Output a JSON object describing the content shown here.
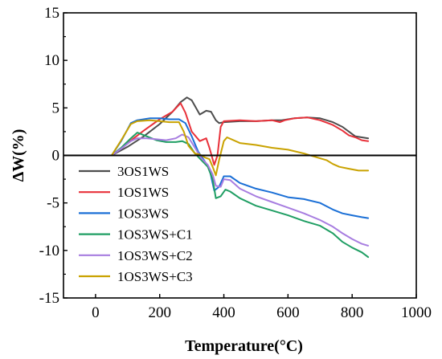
{
  "chart_data": {
    "type": "line",
    "title": "",
    "xlabel": "Temperature(°C)",
    "ylabel": "ΔW(%)",
    "xlim": [
      -100,
      1000
    ],
    "ylim": [
      -15,
      15
    ],
    "xticks": [
      0,
      200,
      400,
      600,
      800,
      1000
    ],
    "yticks": [
      15,
      10,
      5,
      0,
      -5,
      -10,
      -15
    ],
    "zero_line": true,
    "grid": false,
    "legend_position": "lower-left",
    "series": [
      {
        "name": "3OS1WS",
        "color": "#4d4d4d",
        "points": [
          [
            50,
            0
          ],
          [
            100,
            0.9
          ],
          [
            150,
            2.0
          ],
          [
            200,
            3.3
          ],
          [
            240,
            4.6
          ],
          [
            265,
            5.6
          ],
          [
            285,
            6.1
          ],
          [
            300,
            5.8
          ],
          [
            325,
            4.3
          ],
          [
            345,
            4.7
          ],
          [
            360,
            4.6
          ],
          [
            375,
            3.7
          ],
          [
            385,
            3.4
          ],
          [
            400,
            3.5
          ],
          [
            450,
            3.6
          ],
          [
            500,
            3.6
          ],
          [
            550,
            3.7
          ],
          [
            580,
            3.7
          ],
          [
            620,
            3.9
          ],
          [
            660,
            4.0
          ],
          [
            700,
            3.9
          ],
          [
            740,
            3.5
          ],
          [
            770,
            3.0
          ],
          [
            790,
            2.5
          ],
          [
            810,
            2.0
          ],
          [
            830,
            1.9
          ],
          [
            850,
            1.8
          ]
        ]
      },
      {
        "name": "1OS1WS",
        "color": "#e8313a",
        "points": [
          [
            50,
            0
          ],
          [
            100,
            1.3
          ],
          [
            150,
            2.6
          ],
          [
            200,
            3.8
          ],
          [
            240,
            4.6
          ],
          [
            265,
            5.5
          ],
          [
            280,
            4.5
          ],
          [
            300,
            2.5
          ],
          [
            325,
            1.5
          ],
          [
            345,
            1.8
          ],
          [
            355,
            0.8
          ],
          [
            370,
            -1.0
          ],
          [
            380,
            0
          ],
          [
            390,
            3.0
          ],
          [
            400,
            3.6
          ],
          [
            450,
            3.7
          ],
          [
            500,
            3.6
          ],
          [
            550,
            3.7
          ],
          [
            575,
            3.5
          ],
          [
            590,
            3.7
          ],
          [
            620,
            3.9
          ],
          [
            660,
            4.0
          ],
          [
            700,
            3.7
          ],
          [
            740,
            3.2
          ],
          [
            770,
            2.6
          ],
          [
            790,
            2.1
          ],
          [
            810,
            1.9
          ],
          [
            830,
            1.6
          ],
          [
            850,
            1.5
          ]
        ]
      },
      {
        "name": "1OS3WS",
        "color": "#1a6fd6",
        "points": [
          [
            50,
            0
          ],
          [
            80,
            1.5
          ],
          [
            110,
            3.4
          ],
          [
            130,
            3.7
          ],
          [
            170,
            3.9
          ],
          [
            200,
            3.9
          ],
          [
            230,
            3.8
          ],
          [
            260,
            3.8
          ],
          [
            280,
            3.4
          ],
          [
            300,
            2.0
          ],
          [
            320,
            0.4
          ],
          [
            340,
            -0.6
          ],
          [
            355,
            -1.4
          ],
          [
            370,
            -3.7
          ],
          [
            385,
            -3.3
          ],
          [
            400,
            -2.2
          ],
          [
            420,
            -2.2
          ],
          [
            450,
            -2.9
          ],
          [
            500,
            -3.5
          ],
          [
            550,
            -3.9
          ],
          [
            600,
            -4.4
          ],
          [
            650,
            -4.6
          ],
          [
            700,
            -5.0
          ],
          [
            740,
            -5.7
          ],
          [
            770,
            -6.1
          ],
          [
            800,
            -6.3
          ],
          [
            830,
            -6.5
          ],
          [
            850,
            -6.6
          ]
        ]
      },
      {
        "name": "1OS3WS+C1",
        "color": "#1f9e63",
        "points": [
          [
            50,
            0
          ],
          [
            80,
            0.8
          ],
          [
            110,
            1.8
          ],
          [
            130,
            2.4
          ],
          [
            160,
            2.0
          ],
          [
            190,
            1.6
          ],
          [
            220,
            1.4
          ],
          [
            250,
            1.4
          ],
          [
            270,
            1.5
          ],
          [
            290,
            1.2
          ],
          [
            310,
            0.2
          ],
          [
            330,
            -0.5
          ],
          [
            350,
            -1.2
          ],
          [
            365,
            -2.5
          ],
          [
            375,
            -4.5
          ],
          [
            390,
            -4.3
          ],
          [
            405,
            -3.6
          ],
          [
            420,
            -3.8
          ],
          [
            450,
            -4.5
          ],
          [
            500,
            -5.3
          ],
          [
            550,
            -5.8
          ],
          [
            600,
            -6.3
          ],
          [
            650,
            -6.9
          ],
          [
            700,
            -7.4
          ],
          [
            740,
            -8.2
          ],
          [
            770,
            -9.1
          ],
          [
            800,
            -9.7
          ],
          [
            830,
            -10.2
          ],
          [
            850,
            -10.7
          ]
        ]
      },
      {
        "name": "1OS3WS+C2",
        "color": "#a77de0",
        "points": [
          [
            50,
            0
          ],
          [
            80,
            0.7
          ],
          [
            110,
            1.5
          ],
          [
            130,
            1.8
          ],
          [
            160,
            1.8
          ],
          [
            190,
            1.7
          ],
          [
            220,
            1.6
          ],
          [
            250,
            1.8
          ],
          [
            270,
            2.2
          ],
          [
            290,
            1.9
          ],
          [
            310,
            0.8
          ],
          [
            330,
            -0.3
          ],
          [
            350,
            -1.0
          ],
          [
            365,
            -2.0
          ],
          [
            375,
            -3.2
          ],
          [
            390,
            -3.3
          ],
          [
            400,
            -2.5
          ],
          [
            420,
            -2.6
          ],
          [
            450,
            -3.5
          ],
          [
            500,
            -4.3
          ],
          [
            550,
            -4.9
          ],
          [
            600,
            -5.5
          ],
          [
            650,
            -6.1
          ],
          [
            700,
            -6.8
          ],
          [
            740,
            -7.5
          ],
          [
            770,
            -8.2
          ],
          [
            800,
            -8.8
          ],
          [
            830,
            -9.3
          ],
          [
            850,
            -9.5
          ]
        ]
      },
      {
        "name": "1OS3WS+C3",
        "color": "#c9a200",
        "points": [
          [
            50,
            0
          ],
          [
            80,
            1.6
          ],
          [
            110,
            3.3
          ],
          [
            130,
            3.6
          ],
          [
            170,
            3.7
          ],
          [
            200,
            3.6
          ],
          [
            230,
            3.5
          ],
          [
            260,
            3.5
          ],
          [
            275,
            2.5
          ],
          [
            290,
            1.0
          ],
          [
            310,
            0.2
          ],
          [
            325,
            0.1
          ],
          [
            340,
            -0.2
          ],
          [
            355,
            -0.4
          ],
          [
            365,
            -1.2
          ],
          [
            375,
            -2.1
          ],
          [
            385,
            -0.5
          ],
          [
            400,
            1.5
          ],
          [
            410,
            1.9
          ],
          [
            450,
            1.3
          ],
          [
            500,
            1.1
          ],
          [
            550,
            0.8
          ],
          [
            600,
            0.6
          ],
          [
            650,
            0.2
          ],
          [
            690,
            -0.2
          ],
          [
            720,
            -0.5
          ],
          [
            740,
            -0.9
          ],
          [
            760,
            -1.2
          ],
          [
            790,
            -1.4
          ],
          [
            820,
            -1.6
          ],
          [
            850,
            -1.6
          ]
        ]
      }
    ]
  }
}
